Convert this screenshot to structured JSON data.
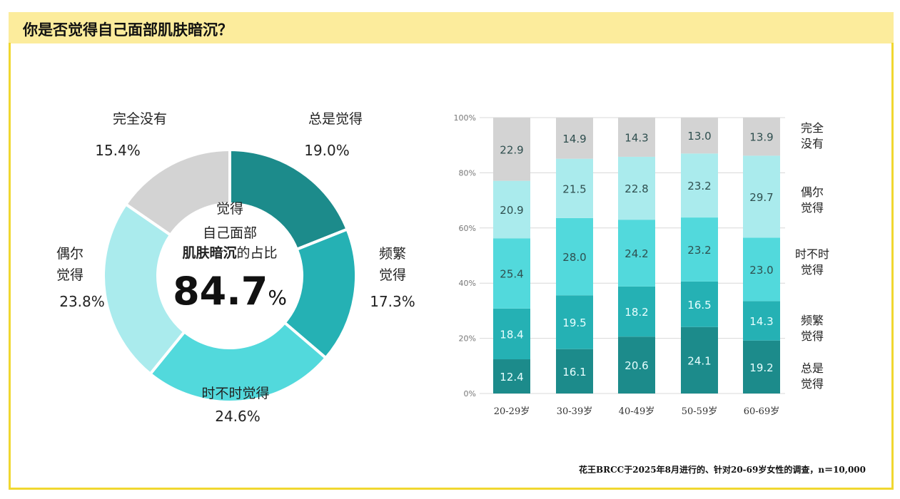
{
  "title": "你是否觉得自己面部肌肤暗沉？",
  "footer": "花王BRCC于2025年8月进行的、针对20-69岁女性的调查，n＝10,000",
  "chart_data": [
    {
      "type": "pie",
      "variant": "donut",
      "center_text": {
        "line1": "觉得",
        "line2": "自己面部",
        "line3_bold": "肌肤暗沉",
        "line3_rest": "的占比",
        "value": "84.7",
        "unit": "%"
      },
      "slices": [
        {
          "label": "总是觉得",
          "value": 19.0,
          "display": "19.0%",
          "color": "#1c8b8b"
        },
        {
          "label": "频繁觉得",
          "value": 17.3,
          "display": "17.3%",
          "color": "#25b1b4"
        },
        {
          "label": "时不时觉得",
          "value": 24.6,
          "display": "24.6%",
          "color": "#52d9dc"
        },
        {
          "label": "偶尔觉得",
          "value": 23.8,
          "display": "23.8%",
          "color": "#aaebed"
        },
        {
          "label": "完全没有",
          "value": 15.4,
          "display": "15.4%",
          "color": "#d3d3d3"
        }
      ]
    },
    {
      "type": "bar",
      "stacked": true,
      "categories": [
        "20-29岁",
        "30-39岁",
        "40-49岁",
        "50-59岁",
        "60-69岁"
      ],
      "ylim": [
        0,
        100
      ],
      "yticks": [
        "0%",
        "20%",
        "40%",
        "60%",
        "80%",
        "100%"
      ],
      "grid": true,
      "legend_position": "right",
      "series": [
        {
          "name": "总是觉得",
          "color": "#1c8b8b",
          "values": [
            12.4,
            16.1,
            20.6,
            24.1,
            19.2
          ]
        },
        {
          "name": "频繁觉得",
          "color": "#25b1b4",
          "values": [
            18.4,
            19.5,
            18.2,
            16.5,
            14.3
          ]
        },
        {
          "name": "时不时觉得",
          "color": "#52d9dc",
          "values": [
            25.4,
            28.0,
            24.2,
            23.2,
            23.0
          ]
        },
        {
          "name": "偶尔觉得",
          "color": "#aaebed",
          "values": [
            20.9,
            21.5,
            22.8,
            23.2,
            29.7
          ]
        },
        {
          "name": "完全没有",
          "color": "#d3d3d3",
          "values": [
            22.9,
            14.9,
            14.3,
            13.0,
            13.9
          ]
        }
      ]
    }
  ]
}
